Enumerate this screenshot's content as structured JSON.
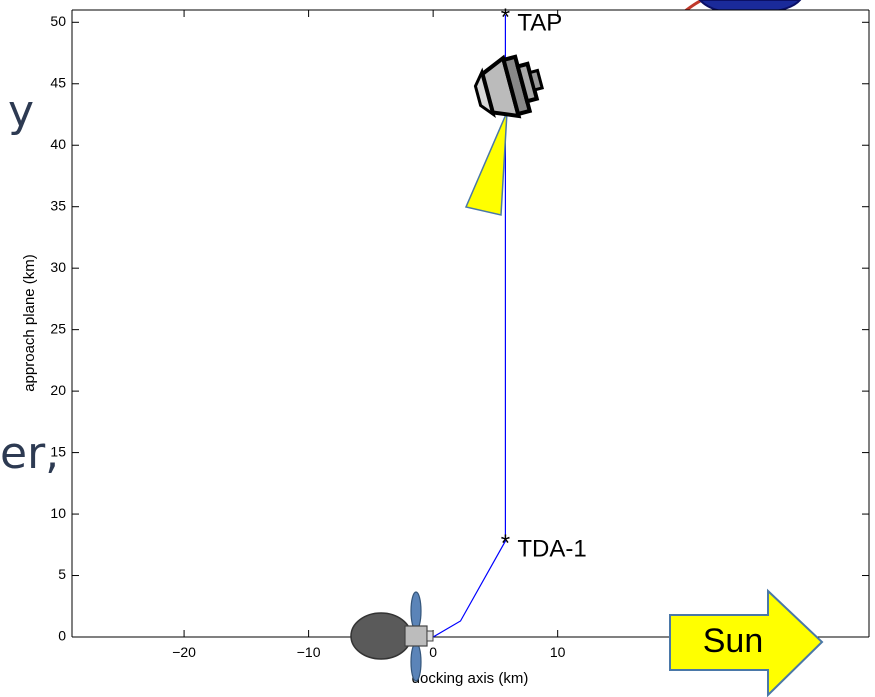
{
  "chart_data": {
    "type": "line",
    "title": "",
    "xlabel": "docking axis (km)",
    "ylabel": "approach plane (km)",
    "xlim": [
      -29,
      35
    ],
    "ylim": [
      0,
      51
    ],
    "x_ticks": [
      -20,
      -10,
      0,
      10
    ],
    "y_ticks": [
      0,
      5,
      10,
      15,
      20,
      25,
      30,
      35,
      40,
      45,
      50
    ],
    "grid": false,
    "series": [
      {
        "points": [
          [
            0,
            0
          ],
          [
            2.2,
            1.3
          ],
          [
            5.8,
            7.8
          ],
          [
            5.8,
            50.6
          ]
        ],
        "color": "#0000ff"
      }
    ],
    "annotations": [
      {
        "text": "TAP",
        "x": 5.8,
        "y": 50.6
      },
      {
        "text": "TDA-1",
        "x": 5.8,
        "y": 7.8
      }
    ]
  },
  "sun": {
    "label": "Sun"
  },
  "background_text": {
    "fragment_top": "y",
    "fragment_mid": "er,"
  },
  "colors": {
    "trajectory": "#0000ff",
    "sun_arrow": "#ffff00",
    "cone": "#ffff00"
  }
}
